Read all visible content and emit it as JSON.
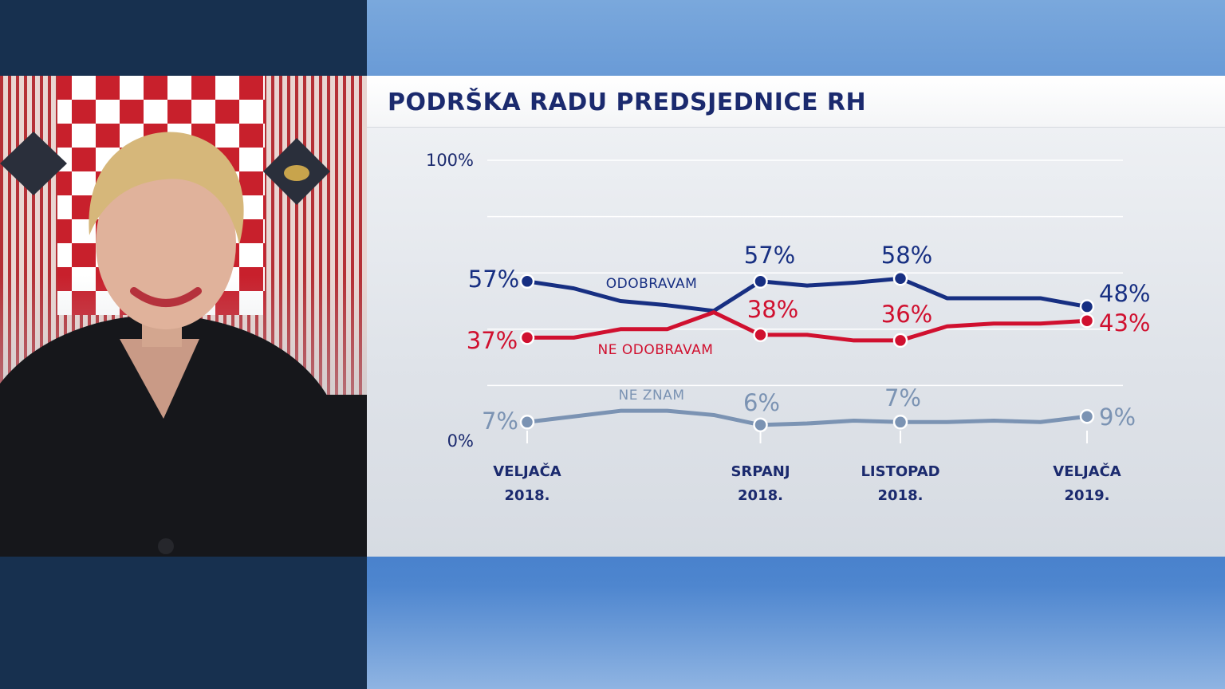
{
  "colors": {
    "approve": "#172f82",
    "disapprove": "#d0102f",
    "dontknow": "#7b93b3"
  },
  "chart_data": {
    "type": "line",
    "title": "PODRŠKA RADU PREDSJEDNICE RH",
    "ylim": [
      0,
      100
    ],
    "ytick_labels": [
      "100%",
      "0%"
    ],
    "grid": true,
    "x_labels": [
      {
        "line1": "VELJAČA",
        "line2": "2018."
      },
      {
        "line1": "SRPANJ",
        "line2": "2018."
      },
      {
        "line1": "LISTOPAD",
        "line2": "2018."
      },
      {
        "line1": "VELJAČA",
        "line2": "2019."
      }
    ],
    "x_months": [
      0,
      1,
      2,
      3,
      4,
      5,
      6,
      7,
      8,
      9,
      10,
      11,
      12
    ],
    "labeled_x": [
      0,
      5,
      8,
      12
    ],
    "series": [
      {
        "name": "ODOBRAVAM",
        "color": "#172f82",
        "values": [
          57,
          54.5,
          50,
          48.5,
          46.5,
          57,
          55.5,
          56.5,
          58,
          51,
          51,
          51,
          48
        ],
        "labels": [
          "57%",
          "57%",
          "58%",
          "48%"
        ]
      },
      {
        "name": "NE ODOBRAVAM",
        "color": "#d0102f",
        "values": [
          37,
          37,
          40,
          40,
          46,
          38,
          38,
          36,
          36,
          41,
          42,
          42,
          43
        ],
        "labels": [
          "37%",
          "38%",
          "36%",
          "43%"
        ]
      },
      {
        "name": "NE ZNAM",
        "color": "#7b93b3",
        "values": [
          7,
          9,
          11,
          11,
          9.5,
          6,
          6.5,
          7.5,
          7,
          7,
          7.5,
          7,
          9
        ],
        "labels": [
          "7%",
          "6%",
          "7%",
          "9%"
        ]
      }
    ]
  }
}
